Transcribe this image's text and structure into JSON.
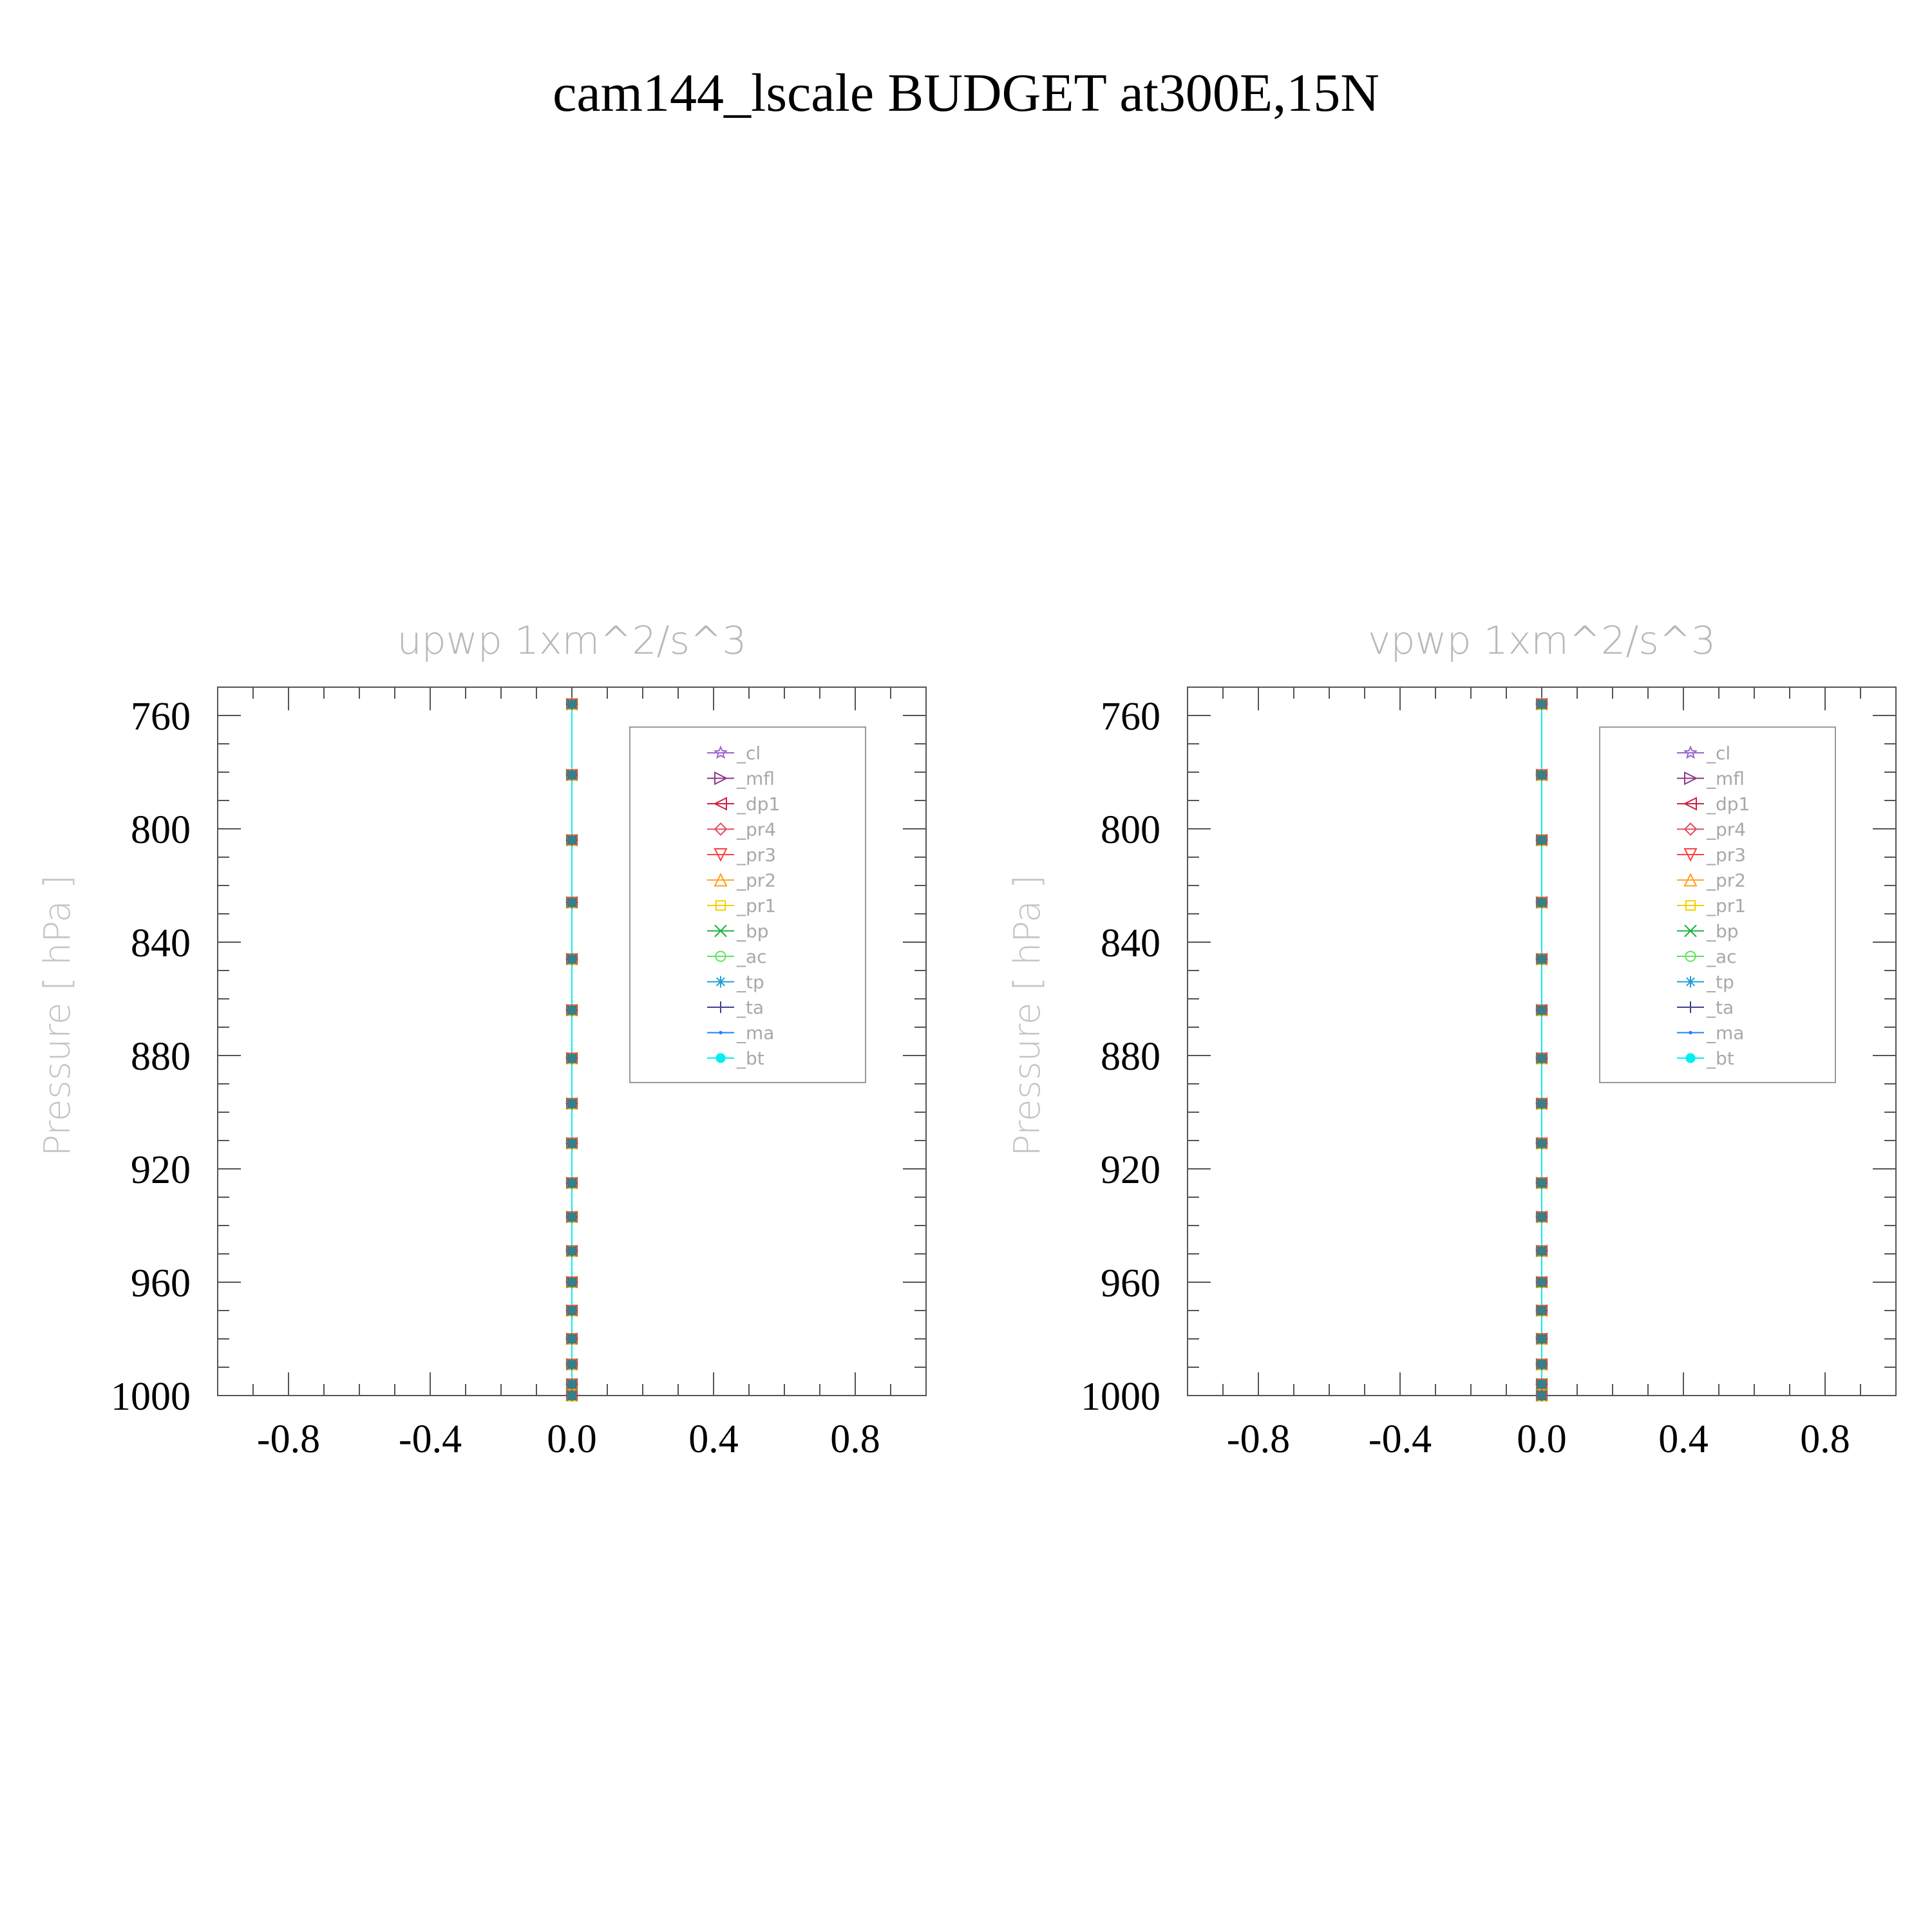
{
  "title": "cam144_lscale  BUDGET at300E,15N",
  "chart_data": [
    {
      "type": "line",
      "title": "upwp    1xm^2/s^3",
      "ylabel": "Pressure  [ hPa ]",
      "xlabel": "",
      "xlim": [
        -1.0,
        1.0
      ],
      "ylim": [
        1000,
        750
      ],
      "x_ticks": [
        -0.8,
        -0.4,
        0.0,
        0.4,
        0.8
      ],
      "x_tick_labels": [
        "-0.8",
        "-0.4",
        "0.0",
        "0.4",
        "0.8"
      ],
      "y_ticks": [
        760,
        800,
        840,
        880,
        920,
        960,
        1000
      ],
      "y_tick_labels": [
        "760",
        "800",
        "840",
        "880",
        "920",
        "960",
        "1000"
      ],
      "y": [
        756,
        781,
        804,
        826,
        846,
        864,
        881,
        897,
        911,
        925,
        937,
        949,
        960,
        970,
        980,
        989,
        996,
        1000
      ],
      "legend_position": "top-right",
      "series": [
        {
          "name": "_cl",
          "color": "#9966cc",
          "marker": "star",
          "values": [
            0,
            0,
            0,
            0,
            0,
            0,
            0,
            0,
            0,
            0,
            0,
            0,
            0,
            0,
            0,
            0,
            0,
            0
          ]
        },
        {
          "name": "_mfl",
          "color": "#8b3a8b",
          "marker": "triangle-right",
          "values": [
            0,
            0,
            0,
            0,
            0,
            0,
            0,
            0,
            0,
            0,
            0,
            0,
            0,
            0,
            0,
            0,
            0,
            0
          ]
        },
        {
          "name": "_dp1",
          "color": "#cc2244",
          "marker": "triangle-left",
          "values": [
            0,
            0,
            0,
            0,
            0,
            0,
            0,
            0,
            0,
            0,
            0,
            0,
            0,
            0,
            0,
            0,
            0,
            0
          ]
        },
        {
          "name": "_pr4",
          "color": "#e05060",
          "marker": "diamond",
          "values": [
            0,
            0,
            0,
            0,
            0,
            0,
            0,
            0,
            0,
            0,
            0,
            0,
            0,
            0,
            0,
            0,
            0,
            0
          ]
        },
        {
          "name": "_pr3",
          "color": "#ff4040",
          "marker": "triangle-down",
          "values": [
            0,
            0,
            0,
            0,
            0,
            0,
            0,
            0,
            0,
            0,
            0,
            0,
            0,
            0,
            0,
            0,
            0,
            0
          ]
        },
        {
          "name": "_pr2",
          "color": "#ffa020",
          "marker": "triangle-up",
          "values": [
            0,
            0,
            0,
            0,
            0,
            0,
            0,
            0,
            0,
            0,
            0,
            0,
            0,
            0,
            0,
            0,
            0,
            0
          ]
        },
        {
          "name": "_pr1",
          "color": "#f0d000",
          "marker": "square",
          "values": [
            0,
            0,
            0,
            0,
            0,
            0,
            0,
            0,
            0,
            0,
            0,
            0,
            0,
            0,
            0,
            0,
            0,
            0
          ]
        },
        {
          "name": "_bp",
          "color": "#20b040",
          "marker": "x",
          "values": [
            0,
            0,
            0,
            0,
            0,
            0,
            0,
            0,
            0,
            0,
            0,
            0,
            0,
            0,
            0,
            0,
            0,
            0
          ]
        },
        {
          "name": "_ac",
          "color": "#60e060",
          "marker": "circle-open",
          "values": [
            0,
            0,
            0,
            0,
            0,
            0,
            0,
            0,
            0,
            0,
            0,
            0,
            0,
            0,
            0,
            0,
            0,
            0
          ]
        },
        {
          "name": "_tp",
          "color": "#20a0d0",
          "marker": "asterisk",
          "values": [
            0,
            0,
            0,
            0,
            0,
            0,
            0,
            0,
            0,
            0,
            0,
            0,
            0,
            0,
            0,
            0,
            0,
            0
          ]
        },
        {
          "name": "_ta",
          "color": "#404090",
          "marker": "plus",
          "values": [
            0,
            0,
            0,
            0,
            0,
            0,
            0,
            0,
            0,
            0,
            0,
            0,
            0,
            0,
            0,
            0,
            0,
            0
          ]
        },
        {
          "name": "_ma",
          "color": "#2080ff",
          "marker": "dot",
          "values": [
            0,
            0,
            0,
            0,
            0,
            0,
            0,
            0,
            0,
            0,
            0,
            0,
            0,
            0,
            0,
            0,
            0,
            0
          ]
        },
        {
          "name": "_bt",
          "color": "#00f0f0",
          "marker": "circle-filled",
          "values": [
            0,
            0,
            0,
            0,
            0,
            0,
            0,
            0,
            0,
            0,
            0,
            0,
            0,
            0,
            0,
            0,
            0,
            0
          ]
        }
      ]
    },
    {
      "type": "line",
      "title": "vpwp    1xm^2/s^3",
      "ylabel": "Pressure  [ hPa ]",
      "xlabel": "",
      "xlim": [
        -1.0,
        1.0
      ],
      "ylim": [
        1000,
        750
      ],
      "x_ticks": [
        -0.8,
        -0.4,
        0.0,
        0.4,
        0.8
      ],
      "x_tick_labels": [
        "-0.8",
        "-0.4",
        "0.0",
        "0.4",
        "0.8"
      ],
      "y_ticks": [
        760,
        800,
        840,
        880,
        920,
        960,
        1000
      ],
      "y_tick_labels": [
        "760",
        "800",
        "840",
        "880",
        "920",
        "960",
        "1000"
      ],
      "y": [
        756,
        781,
        804,
        826,
        846,
        864,
        881,
        897,
        911,
        925,
        937,
        949,
        960,
        970,
        980,
        989,
        996,
        1000
      ],
      "legend_position": "top-right",
      "series": [
        {
          "name": "_cl",
          "color": "#9966cc",
          "marker": "star",
          "values": [
            0,
            0,
            0,
            0,
            0,
            0,
            0,
            0,
            0,
            0,
            0,
            0,
            0,
            0,
            0,
            0,
            0,
            0
          ]
        },
        {
          "name": "_mfl",
          "color": "#8b3a8b",
          "marker": "triangle-right",
          "values": [
            0,
            0,
            0,
            0,
            0,
            0,
            0,
            0,
            0,
            0,
            0,
            0,
            0,
            0,
            0,
            0,
            0,
            0
          ]
        },
        {
          "name": "_dp1",
          "color": "#cc2244",
          "marker": "triangle-left",
          "values": [
            0,
            0,
            0,
            0,
            0,
            0,
            0,
            0,
            0,
            0,
            0,
            0,
            0,
            0,
            0,
            0,
            0,
            0
          ]
        },
        {
          "name": "_pr4",
          "color": "#e05060",
          "marker": "diamond",
          "values": [
            0,
            0,
            0,
            0,
            0,
            0,
            0,
            0,
            0,
            0,
            0,
            0,
            0,
            0,
            0,
            0,
            0,
            0
          ]
        },
        {
          "name": "_pr3",
          "color": "#ff4040",
          "marker": "triangle-down",
          "values": [
            0,
            0,
            0,
            0,
            0,
            0,
            0,
            0,
            0,
            0,
            0,
            0,
            0,
            0,
            0,
            0,
            0,
            0
          ]
        },
        {
          "name": "_pr2",
          "color": "#ffa020",
          "marker": "triangle-up",
          "values": [
            0,
            0,
            0,
            0,
            0,
            0,
            0,
            0,
            0,
            0,
            0,
            0,
            0,
            0,
            0,
            0,
            0,
            0
          ]
        },
        {
          "name": "_pr1",
          "color": "#f0d000",
          "marker": "square",
          "values": [
            0,
            0,
            0,
            0,
            0,
            0,
            0,
            0,
            0,
            0,
            0,
            0,
            0,
            0,
            0,
            0,
            0,
            0
          ]
        },
        {
          "name": "_bp",
          "color": "#20b040",
          "marker": "x",
          "values": [
            0,
            0,
            0,
            0,
            0,
            0,
            0,
            0,
            0,
            0,
            0,
            0,
            0,
            0,
            0,
            0,
            0,
            0
          ]
        },
        {
          "name": "_ac",
          "color": "#60e060",
          "marker": "circle-open",
          "values": [
            0,
            0,
            0,
            0,
            0,
            0,
            0,
            0,
            0,
            0,
            0,
            0,
            0,
            0,
            0,
            0,
            0,
            0
          ]
        },
        {
          "name": "_tp",
          "color": "#20a0d0",
          "marker": "asterisk",
          "values": [
            0,
            0,
            0,
            0,
            0,
            0,
            0,
            0,
            0,
            0,
            0,
            0,
            0,
            0,
            0,
            0,
            0,
            0
          ]
        },
        {
          "name": "_ta",
          "color": "#404090",
          "marker": "plus",
          "values": [
            0,
            0,
            0,
            0,
            0,
            0,
            0,
            0,
            0,
            0,
            0,
            0,
            0,
            0,
            0,
            0,
            0,
            0
          ]
        },
        {
          "name": "_ma",
          "color": "#2080ff",
          "marker": "dot",
          "values": [
            0,
            0,
            0,
            0,
            0,
            0,
            0,
            0,
            0,
            0,
            0,
            0,
            0,
            0,
            0,
            0,
            0,
            0
          ]
        },
        {
          "name": "_bt",
          "color": "#00f0f0",
          "marker": "circle-filled",
          "values": [
            0,
            0,
            0,
            0,
            0,
            0,
            0,
            0,
            0,
            0,
            0,
            0,
            0,
            0,
            0,
            0,
            0,
            0
          ]
        }
      ]
    }
  ]
}
